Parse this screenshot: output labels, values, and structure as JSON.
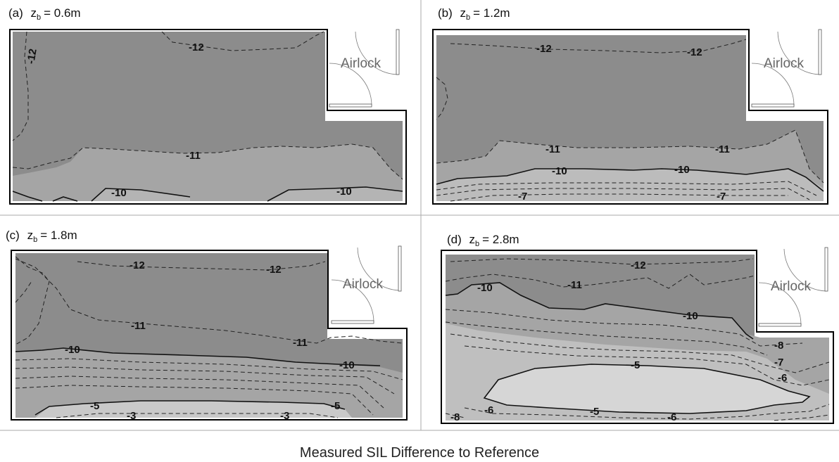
{
  "caption": "Measured SIL Difference to Reference",
  "airlock_label": "Airlock",
  "panels": [
    {
      "letter": "(a)",
      "z_label": "z",
      "z_sub": "b",
      "z_value": "= 0.6m",
      "contour_labels": [
        "-12",
        "-12",
        "-11",
        "-10",
        "-10"
      ]
    },
    {
      "letter": "(b)",
      "z_label": "z",
      "z_sub": "b",
      "z_value": "= 1.2m",
      "contour_labels": [
        "-12",
        "-12",
        "-11",
        "-11",
        "-10",
        "-10",
        "-7",
        "-7"
      ]
    },
    {
      "letter": "(c)",
      "z_label": "z",
      "z_sub": "b",
      "z_value": "= 1.8m",
      "contour_labels": [
        "-12",
        "-12",
        "-11",
        "-11",
        "-10",
        "-10",
        "-5",
        "-5",
        "-3",
        "-3"
      ]
    },
    {
      "letter": "(d)",
      "z_label": "z",
      "z_sub": "b",
      "z_value": "= 2.8m",
      "contour_labels": [
        "-12",
        "-11",
        "-10",
        "-10",
        "-8",
        "-7",
        "-6",
        "-5",
        "-6",
        "-5",
        "-6",
        "-8"
      ]
    }
  ],
  "colors": {
    "dark": "#8c8c8c",
    "mid": "#a5a5a5",
    "light": "#c9c9c9",
    "lighter": "#d6d6d6",
    "outline": "#000000",
    "divider": "#aaaaaa"
  }
}
